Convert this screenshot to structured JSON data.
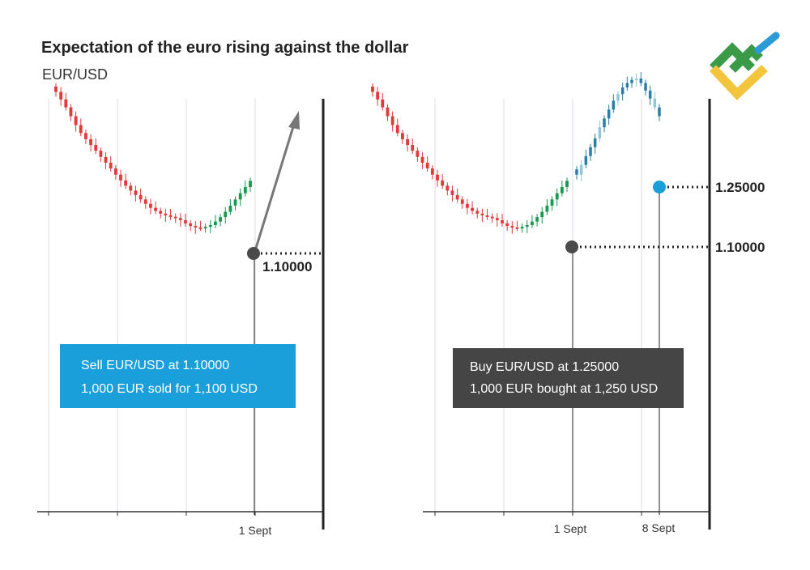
{
  "title": "Expectation of the euro rising against the dollar",
  "subtitle": "EUR/USD",
  "colors": {
    "bull": "#1a9a4e",
    "bear": "#e03a3a",
    "future": "#2a7fa6",
    "future_light": "#8fc8d8",
    "sell_box": "#1a9fda",
    "buy_box": "#454545",
    "marker_dark": "#4a4a4a",
    "marker_blue": "#1a9fda",
    "arrow": "#777777",
    "logo_green": "#3b9a47",
    "logo_yellow": "#f2c53d",
    "logo_blue": "#2b9bd7"
  },
  "logo_icon": "litefinance-logo-icon",
  "chart_data": [
    {
      "type": "candlestick",
      "title": "",
      "x_tick_labels": [
        "1 Sept"
      ],
      "price_tick_labels": [
        "1.10000"
      ],
      "price_path": [
        1.465,
        1.448,
        1.43,
        1.41,
        1.39,
        1.372,
        1.358,
        1.345,
        1.332,
        1.318,
        1.305,
        1.292,
        1.278,
        1.265,
        1.253,
        1.242,
        1.232,
        1.222,
        1.212,
        1.203,
        1.196,
        1.19,
        1.186,
        1.183,
        1.18,
        1.175,
        1.168,
        1.162,
        1.159,
        1.158,
        1.16,
        1.164,
        1.172,
        1.182,
        1.194,
        1.208,
        1.222,
        1.236,
        1.25,
        1.264
      ],
      "marker": {
        "label": "1 Sept",
        "price": 1.1
      },
      "annotation": [
        "Sell EUR/USD at 1.10000",
        "1,000 EUR sold for 1,100 USD"
      ],
      "arrow": "upward from 1 Sept"
    },
    {
      "type": "candlestick",
      "title": "",
      "x_tick_labels": [
        "1 Sept",
        "8 Sept"
      ],
      "price_tick_labels": [
        "1.25000",
        "1.10000"
      ],
      "price_path": [
        1.465,
        1.448,
        1.43,
        1.41,
        1.39,
        1.372,
        1.358,
        1.345,
        1.332,
        1.318,
        1.305,
        1.292,
        1.278,
        1.265,
        1.253,
        1.242,
        1.232,
        1.222,
        1.212,
        1.203,
        1.196,
        1.19,
        1.186,
        1.183,
        1.18,
        1.175,
        1.168,
        1.162,
        1.159,
        1.158,
        1.16,
        1.164,
        1.172,
        1.182,
        1.194,
        1.208,
        1.222,
        1.236,
        1.25,
        1.264
      ],
      "future_path": [
        1.278,
        1.3,
        1.32,
        1.34,
        1.36,
        1.385,
        1.405,
        1.425,
        1.445,
        1.46,
        1.475,
        1.485,
        1.492,
        1.495,
        1.485,
        1.468,
        1.45,
        1.43,
        1.41
      ],
      "markers": [
        {
          "label": "1 Sept",
          "price": 1.1
        },
        {
          "label": "8 Sept",
          "price": 1.25
        }
      ],
      "annotation": [
        "Buy EUR/USD at 1.25000",
        "1,000 EUR bought at 1,250 USD"
      ]
    }
  ]
}
